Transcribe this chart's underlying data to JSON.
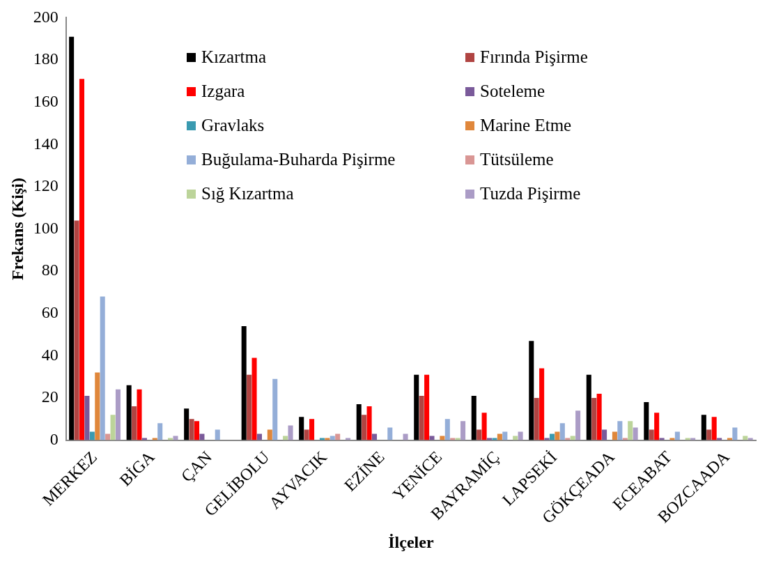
{
  "chart_data": {
    "type": "bar",
    "xlabel": "İlçeler",
    "ylabel": "Frekans (Kişi)",
    "categories": [
      "MERKEZ",
      "BİGA",
      "ÇAN",
      "GELİBOLU",
      "AYVACIK",
      "EZİNE",
      "YENİCE",
      "BAYRAMİÇ",
      "LAPSEKİ",
      "GÖKÇEADA",
      "ECEABAT",
      "BOZCAADA"
    ],
    "series": [
      {
        "name": "Kızartma",
        "color": "#000000",
        "values": [
          191,
          26,
          15,
          54,
          11,
          17,
          31,
          21,
          47,
          31,
          18,
          12
        ]
      },
      {
        "name": "Fırında Pişirme",
        "color": "#b04442",
        "values": [
          104,
          16,
          10,
          31,
          5,
          12,
          21,
          5,
          20,
          20,
          5,
          5
        ]
      },
      {
        "name": "Izgara",
        "color": "#ff0000",
        "values": [
          171,
          24,
          9,
          39,
          10,
          16,
          31,
          13,
          34,
          22,
          13,
          11
        ]
      },
      {
        "name": "Soteleme",
        "color": "#7a5a9a",
        "values": [
          21,
          1,
          3,
          3,
          0,
          3,
          2,
          1,
          1,
          5,
          1,
          1
        ]
      },
      {
        "name": "Gravlaks",
        "color": "#3a9ab0",
        "values": [
          4,
          0,
          0,
          0,
          1,
          0,
          0,
          1,
          3,
          0,
          0,
          0
        ]
      },
      {
        "name": "Marine Etme",
        "color": "#e0873b",
        "values": [
          32,
          1,
          0,
          5,
          1,
          0,
          2,
          3,
          4,
          4,
          1,
          1
        ]
      },
      {
        "name": "Buğulama-Buharda Pişirme",
        "color": "#94aed8",
        "values": [
          68,
          8,
          5,
          29,
          2,
          6,
          10,
          4,
          8,
          9,
          4,
          6
        ]
      },
      {
        "name": "Tütsüleme",
        "color": "#d99694",
        "values": [
          3,
          0,
          0,
          0,
          3,
          0,
          1,
          0,
          1,
          1,
          0,
          0
        ]
      },
      {
        "name": "Sığ Kızartma",
        "color": "#bcd49a",
        "values": [
          12,
          1,
          0,
          2,
          0,
          0,
          1,
          2,
          2,
          9,
          1,
          2
        ]
      },
      {
        "name": "Tuzda Pişirme",
        "color": "#ab9cc6",
        "values": [
          24,
          2,
          0,
          7,
          1,
          3,
          9,
          4,
          14,
          6,
          1,
          1
        ]
      }
    ],
    "ylim": [
      0,
      200
    ],
    "yticks": [
      0,
      20,
      40,
      60,
      80,
      100,
      120,
      140,
      160,
      180,
      200
    ],
    "grid": false,
    "legend": "top"
  }
}
